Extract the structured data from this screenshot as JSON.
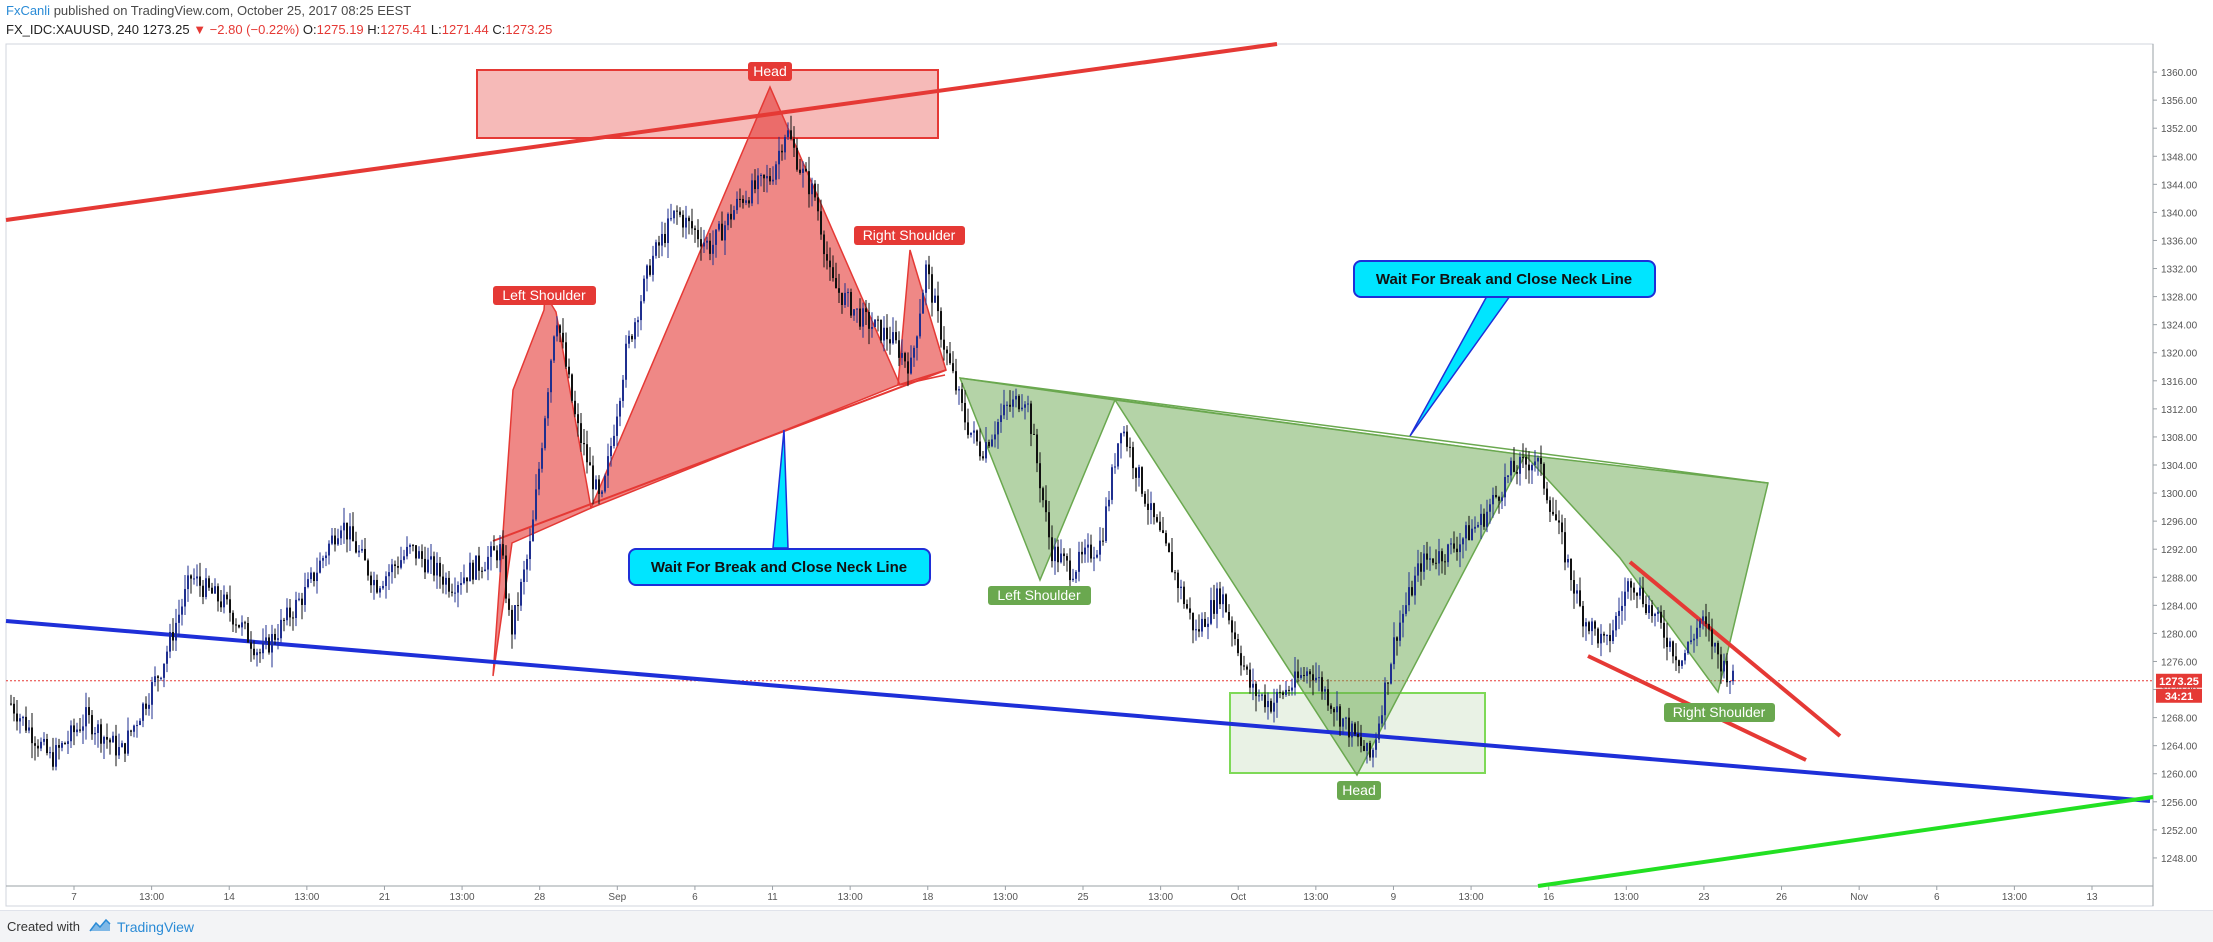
{
  "header": {
    "author": "FxCanli",
    "published_text": "published on TradingView.com, October 25, 2017 08:25 EEST",
    "symbol": "FX_IDC:XAUUSD, 240",
    "last": "1273.25",
    "change": "▼ −2.80 (−0.22%)",
    "o_label": "O:",
    "o_value": "1275.19",
    "h_label": "H:",
    "h_value": "1275.41",
    "l_label": "L:",
    "l_value": "1271.44",
    "c_label": "C:",
    "c_value": "1273.25"
  },
  "footer": {
    "created_with": "Created with",
    "brand": "TradingView"
  },
  "price_label": {
    "price": "1273.25",
    "countdown": "34:21"
  },
  "annotations": {
    "red_head": "Head",
    "red_left_shoulder": "Left Shoulder",
    "red_right_shoulder": "Right Shoulder",
    "green_left_shoulder": "Left Shoulder",
    "green_head": "Head",
    "green_right_shoulder": "Right Shoulder",
    "callout_left": "Wait For Break and Close Neck Line",
    "callout_right": "Wait For Break and Close Neck Line"
  },
  "colors": {
    "up_candle": "#1f2f8f",
    "down_candle": "#111111",
    "red_pattern": "#e53935",
    "green_pattern": "#6aa84f",
    "blue_trend": "#1e2fd8",
    "callout_fill": "#00e5ff"
  },
  "chart_data": {
    "type": "candlestick",
    "y_range": [
      1244,
      1364
    ],
    "y_ticks": [
      "1248.00",
      "1252.00",
      "1256.00",
      "1260.00",
      "1264.00",
      "1268.00",
      "1272.00",
      "1276.00",
      "1280.00",
      "1284.00",
      "1288.00",
      "1292.00",
      "1296.00",
      "1300.00",
      "1304.00",
      "1308.00",
      "1312.00",
      "1316.00",
      "1320.00",
      "1324.00",
      "1328.00",
      "1332.00",
      "1336.00",
      "1340.00",
      "1344.00",
      "1348.00",
      "1352.00",
      "1356.00",
      "1360.00"
    ],
    "x_ticks": [
      "7",
      "13:00",
      "14",
      "13:00",
      "21",
      "13:00",
      "28",
      "Sep",
      "6",
      "11",
      "13:00",
      "18",
      "13:00",
      "25",
      "13:00",
      "Oct",
      "13:00",
      "9",
      "13:00",
      "16",
      "13:00",
      "23",
      "26",
      "Nov",
      "6",
      "13:00",
      "13"
    ],
    "current_price": 1273.25,
    "price_path": [
      [
        0,
        1270
      ],
      [
        40,
        1262
      ],
      [
        75,
        1268
      ],
      [
        110,
        1263
      ],
      [
        150,
        1275
      ],
      [
        180,
        1288
      ],
      [
        215,
        1284
      ],
      [
        250,
        1277
      ],
      [
        295,
        1286
      ],
      [
        330,
        1296
      ],
      [
        365,
        1287
      ],
      [
        400,
        1292
      ],
      [
        440,
        1287
      ],
      [
        470,
        1290
      ],
      [
        490,
        1292
      ],
      [
        500,
        1280
      ],
      [
        520,
        1293
      ],
      [
        545,
        1326
      ],
      [
        565,
        1310
      ],
      [
        590,
        1298
      ],
      [
        615,
        1320
      ],
      [
        640,
        1333
      ],
      [
        665,
        1340
      ],
      [
        700,
        1335
      ],
      [
        730,
        1342
      ],
      [
        760,
        1345
      ],
      [
        775,
        1352
      ],
      [
        790,
        1346
      ],
      [
        805,
        1342
      ],
      [
        820,
        1330
      ],
      [
        850,
        1325
      ],
      [
        880,
        1322
      ],
      [
        900,
        1318
      ],
      [
        915,
        1332
      ],
      [
        935,
        1320
      ],
      [
        955,
        1310
      ],
      [
        970,
        1306
      ],
      [
        995,
        1312
      ],
      [
        1015,
        1314
      ],
      [
        1040,
        1292
      ],
      [
        1060,
        1289
      ],
      [
        1090,
        1293
      ],
      [
        1110,
        1310
      ],
      [
        1140,
        1297
      ],
      [
        1160,
        1290
      ],
      [
        1185,
        1280
      ],
      [
        1210,
        1286
      ],
      [
        1240,
        1272
      ],
      [
        1260,
        1270
      ],
      [
        1300,
        1275
      ],
      [
        1330,
        1268
      ],
      [
        1360,
        1262
      ],
      [
        1385,
        1280
      ],
      [
        1410,
        1290
      ],
      [
        1440,
        1292
      ],
      [
        1470,
        1296
      ],
      [
        1500,
        1303
      ],
      [
        1525,
        1305
      ],
      [
        1545,
        1296
      ],
      [
        1570,
        1283
      ],
      [
        1595,
        1278
      ],
      [
        1620,
        1288
      ],
      [
        1645,
        1282
      ],
      [
        1670,
        1276
      ],
      [
        1690,
        1282
      ],
      [
        1710,
        1276
      ],
      [
        1722,
        1273.25
      ]
    ],
    "series": [
      {
        "name": "Head",
        "type": "peak",
        "price": 1356.5
      },
      {
        "name": "Left Shoulder",
        "type": "peak",
        "price": 1326
      },
      {
        "name": "Right Shoulder",
        "type": "peak",
        "price": 1334
      },
      {
        "name": "Head",
        "type": "trough",
        "price": 1260
      },
      {
        "name": "Left Shoulder",
        "type": "trough",
        "price": 1288
      },
      {
        "name": "Right Shoulder",
        "type": "trough",
        "price": 1271
      }
    ]
  }
}
